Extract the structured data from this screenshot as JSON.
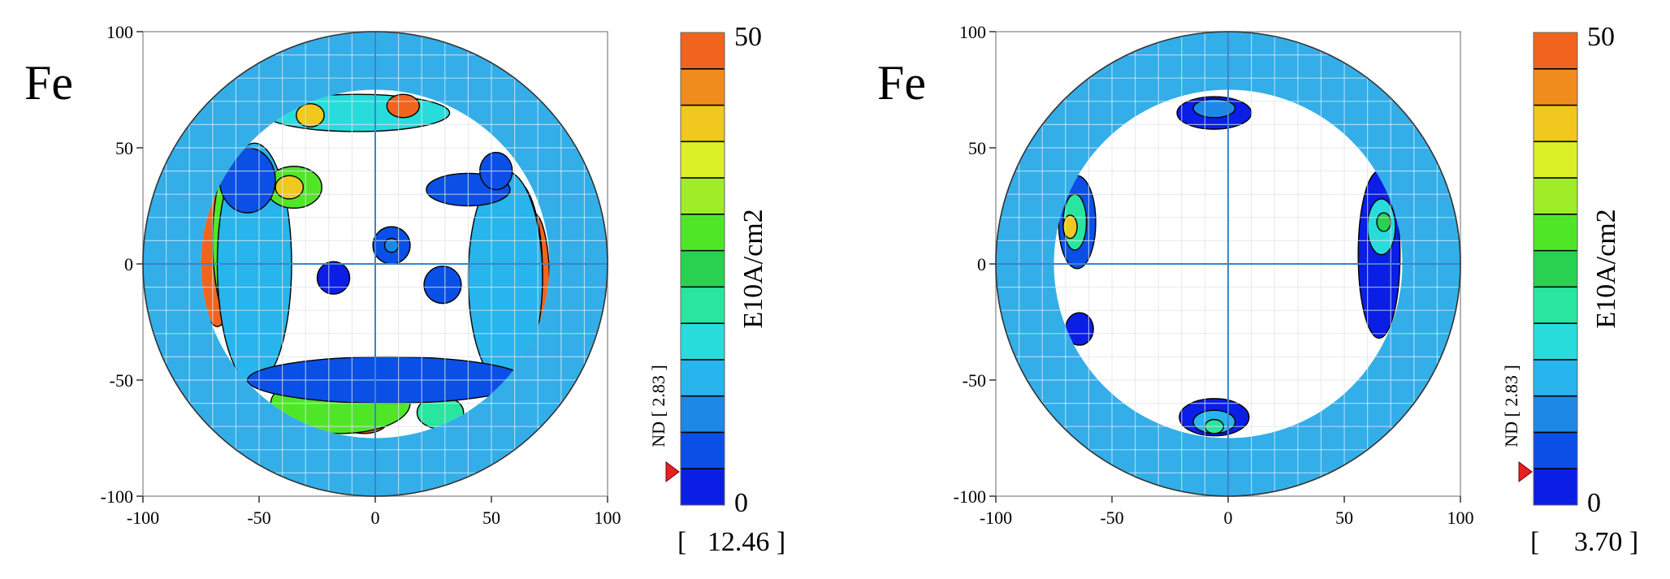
{
  "chart_data": [
    {
      "type": "heatmap",
      "panel_label": "Fe",
      "x_ticks": [
        "-100",
        "-50",
        "0",
        "50",
        "100"
      ],
      "y_ticks": [
        "100",
        "50",
        "0",
        "-50",
        "-100"
      ],
      "xlim": [
        -100,
        100
      ],
      "ylim": [
        -100,
        100
      ],
      "grid": true,
      "measured_radius": 75,
      "outer_radius": 100,
      "colorbar": {
        "min_label": "0",
        "max_label": "50",
        "unit": "E10A/cm2",
        "colors": [
          "#0a1ee6",
          "#0a50e6",
          "#1e88e6",
          "#28b4ec",
          "#28dcdc",
          "#28e6a0",
          "#28d250",
          "#50e628",
          "#a0ec28",
          "#dcf028",
          "#f0c81e",
          "#f08c1e",
          "#f0641e"
        ]
      },
      "axis_caption": "ND [ 2.83 ]",
      "max_value_label": "[   12.46 ]",
      "marker_value": 2.83,
      "regions": [
        {
          "x": -68,
          "y": 5,
          "rx": 8,
          "ry": 32,
          "value": 50
        },
        {
          "x": -57,
          "y": 10,
          "rx": 13,
          "ry": 42,
          "value": 30
        },
        {
          "x": -52,
          "y": 0,
          "rx": 16,
          "ry": 52,
          "value": 12
        },
        {
          "x": 68,
          "y": -8,
          "rx": 7,
          "ry": 30,
          "value": 50
        },
        {
          "x": 60,
          "y": -4,
          "rx": 12,
          "ry": 40,
          "value": 30
        },
        {
          "x": 56,
          "y": -6,
          "rx": 16,
          "ry": 46,
          "value": 12
        },
        {
          "x": -35,
          "y": 33,
          "rx": 12,
          "ry": 9,
          "value": 30
        },
        {
          "x": -37,
          "y": 33,
          "rx": 6,
          "ry": 5,
          "value": 40
        },
        {
          "x": -55,
          "y": 36,
          "rx": 12,
          "ry": 14,
          "value": 6
        },
        {
          "x": -8,
          "y": 65,
          "rx": 40,
          "ry": 8,
          "value": 16
        },
        {
          "x": 12,
          "y": 68,
          "rx": 7,
          "ry": 5,
          "value": 50
        },
        {
          "x": -28,
          "y": 64,
          "rx": 6,
          "ry": 5,
          "value": 40
        },
        {
          "x": -25,
          "y": -60,
          "rx": 12,
          "ry": 8,
          "value": 50
        },
        {
          "x": -5,
          "y": -68,
          "rx": 10,
          "ry": 5,
          "value": 50
        },
        {
          "x": -15,
          "y": -60,
          "rx": 30,
          "ry": 13,
          "value": 30
        },
        {
          "x": 28,
          "y": -64,
          "rx": 10,
          "ry": 7,
          "value": 20
        },
        {
          "x": 5,
          "y": -50,
          "rx": 60,
          "ry": 10,
          "value": 6
        },
        {
          "x": 7,
          "y": 8,
          "rx": 8,
          "ry": 8,
          "value": 4
        },
        {
          "x": 7,
          "y": 8,
          "rx": 3,
          "ry": 3,
          "value": 10
        },
        {
          "x": -18,
          "y": -6,
          "rx": 7,
          "ry": 7,
          "value": 3
        },
        {
          "x": 29,
          "y": -9,
          "rx": 8,
          "ry": 8,
          "value": 4
        },
        {
          "x": 40,
          "y": 32,
          "rx": 18,
          "ry": 7,
          "value": 4
        },
        {
          "x": 52,
          "y": 40,
          "rx": 7,
          "ry": 8,
          "value": 4
        }
      ]
    },
    {
      "type": "heatmap",
      "panel_label": "Fe",
      "x_ticks": [
        "-100",
        "-50",
        "0",
        "50",
        "100"
      ],
      "y_ticks": [
        "100",
        "50",
        "0",
        "-50",
        "-100"
      ],
      "xlim": [
        -100,
        100
      ],
      "ylim": [
        -100,
        100
      ],
      "grid": true,
      "measured_radius": 75,
      "outer_radius": 100,
      "colorbar": {
        "min_label": "0",
        "max_label": "50",
        "unit": "E10A/cm2",
        "colors": [
          "#0a1ee6",
          "#0a50e6",
          "#1e88e6",
          "#28b4ec",
          "#28dcdc",
          "#28e6a0",
          "#28d250",
          "#50e628",
          "#a0ec28",
          "#dcf028",
          "#f0c81e",
          "#f08c1e",
          "#f0641e"
        ]
      },
      "axis_caption": "ND [ 2.83 ]",
      "max_value_label": "[     3.70 ]",
      "marker_value": 2.83,
      "regions": [
        {
          "x": -65,
          "y": 18,
          "rx": 8,
          "ry": 20,
          "value": 4
        },
        {
          "x": -66,
          "y": 18,
          "rx": 5,
          "ry": 12,
          "value": 20
        },
        {
          "x": -68,
          "y": 16,
          "rx": 3,
          "ry": 5,
          "value": 40
        },
        {
          "x": -64,
          "y": -28,
          "rx": 6,
          "ry": 7,
          "value": 3
        },
        {
          "x": 65,
          "y": 4,
          "rx": 9,
          "ry": 36,
          "value": 3
        },
        {
          "x": 66,
          "y": 16,
          "rx": 6,
          "ry": 12,
          "value": 16
        },
        {
          "x": 67,
          "y": 18,
          "rx": 3,
          "ry": 4,
          "value": 24
        },
        {
          "x": -6,
          "y": 65,
          "rx": 16,
          "ry": 7,
          "value": 3
        },
        {
          "x": -6,
          "y": 67,
          "rx": 9,
          "ry": 4,
          "value": 8
        },
        {
          "x": -6,
          "y": -66,
          "rx": 15,
          "ry": 8,
          "value": 3
        },
        {
          "x": -6,
          "y": -68,
          "rx": 9,
          "ry": 5,
          "value": 12
        },
        {
          "x": -6,
          "y": -70,
          "rx": 4,
          "ry": 3,
          "value": 22
        }
      ]
    }
  ]
}
